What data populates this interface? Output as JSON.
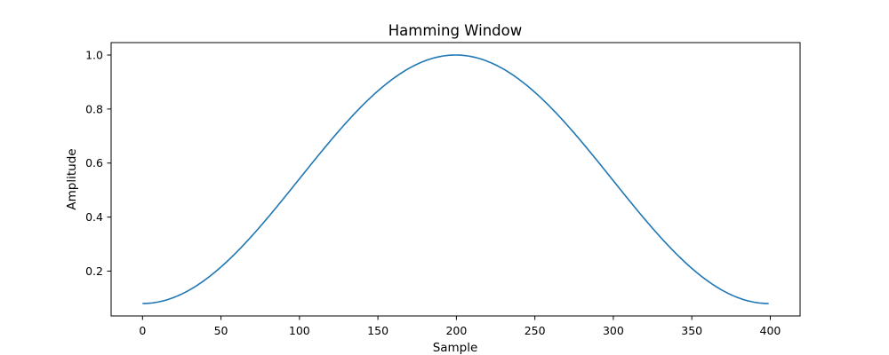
{
  "chart_data": {
    "type": "line",
    "title": "Hamming Window",
    "xlabel": "Sample",
    "ylabel": "Amplitude",
    "xlim": [
      -20,
      419
    ],
    "ylim": [
      0.034,
      1.046
    ],
    "xticks": [
      0,
      50,
      100,
      150,
      200,
      250,
      300,
      350,
      400
    ],
    "xtick_labels": [
      "0",
      "50",
      "100",
      "150",
      "200",
      "250",
      "300",
      "350",
      "400"
    ],
    "yticks": [
      0.2,
      0.4,
      0.6,
      0.8,
      1.0
    ],
    "ytick_labels": [
      "0.2",
      "0.4",
      "0.6",
      "0.8",
      "1.0"
    ],
    "grid": false,
    "series": [
      {
        "name": "Hamming Window",
        "color": "#1f77b4",
        "function": "0.54 - 0.46*cos(2*pi*n/(N-1))",
        "N": 400,
        "x_start": 0,
        "x_end": 399
      }
    ]
  }
}
